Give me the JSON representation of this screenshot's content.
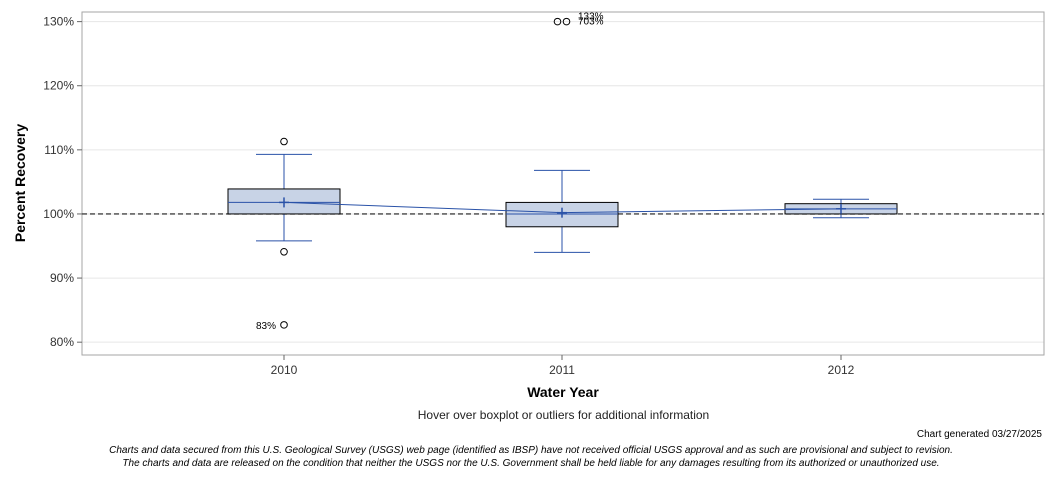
{
  "chart_data": {
    "type": "boxplot",
    "xlabel": "Water Year",
    "ylabel": "Percent Recovery",
    "categories": [
      "2010",
      "2011",
      "2012"
    ],
    "ylim": [
      78,
      131.5
    ],
    "yticks": [
      80,
      90,
      100,
      110,
      120,
      130
    ],
    "ytick_labels": [
      "80%",
      "90%",
      "100%",
      "110%",
      "120%",
      "130%"
    ],
    "reference_line": 100,
    "boxes": [
      {
        "category": "2010",
        "whisker_low": 95.8,
        "q1": 100.0,
        "median": 101.8,
        "q3": 103.9,
        "whisker_high": 109.3,
        "mean": 101.8,
        "outliers": [
          111.3,
          94.1,
          82.7
        ]
      },
      {
        "category": "2011",
        "whisker_low": 94.0,
        "q1": 98.0,
        "median": 100.0,
        "q3": 101.8,
        "whisker_high": 106.8,
        "mean": 100.2,
        "outliers": [
          130.0,
          130.0
        ]
      },
      {
        "category": "2012",
        "whisker_low": 99.4,
        "q1": 100.0,
        "median": 100.8,
        "q3": 101.6,
        "whisker_high": 102.3,
        "mean": 100.8,
        "outliers": []
      }
    ],
    "annotations": [
      {
        "category": "2010",
        "y": 82.7,
        "text": "83%",
        "side": "left"
      },
      {
        "category": "2011",
        "y": 130.0,
        "text": "133%",
        "side": "right"
      },
      {
        "category": "2011",
        "y": 130.0,
        "text": "703%",
        "side": "right"
      }
    ],
    "colors": {
      "box_fill": "#c8d3e6",
      "box_stroke": "#000000",
      "whisker": "#2a52a8",
      "mean_line": "#2a52a8",
      "grid": "#e6e6e6",
      "reference": "#444444"
    },
    "grid": true
  },
  "footer": {
    "hover_note": "Hover over boxplot or outliers for additional information",
    "generated": "Chart generated 03/27/2025",
    "disclaimer_1": "Charts and data secured from this U.S. Geological Survey (USGS) web page (identified as IBSP) have not received official USGS approval and as such are provisional and subject to revision.",
    "disclaimer_2": "The charts and data are released on the condition that neither the USGS nor the U.S. Government shall be held liable for any damages resulting from its authorized or unauthorized use."
  }
}
